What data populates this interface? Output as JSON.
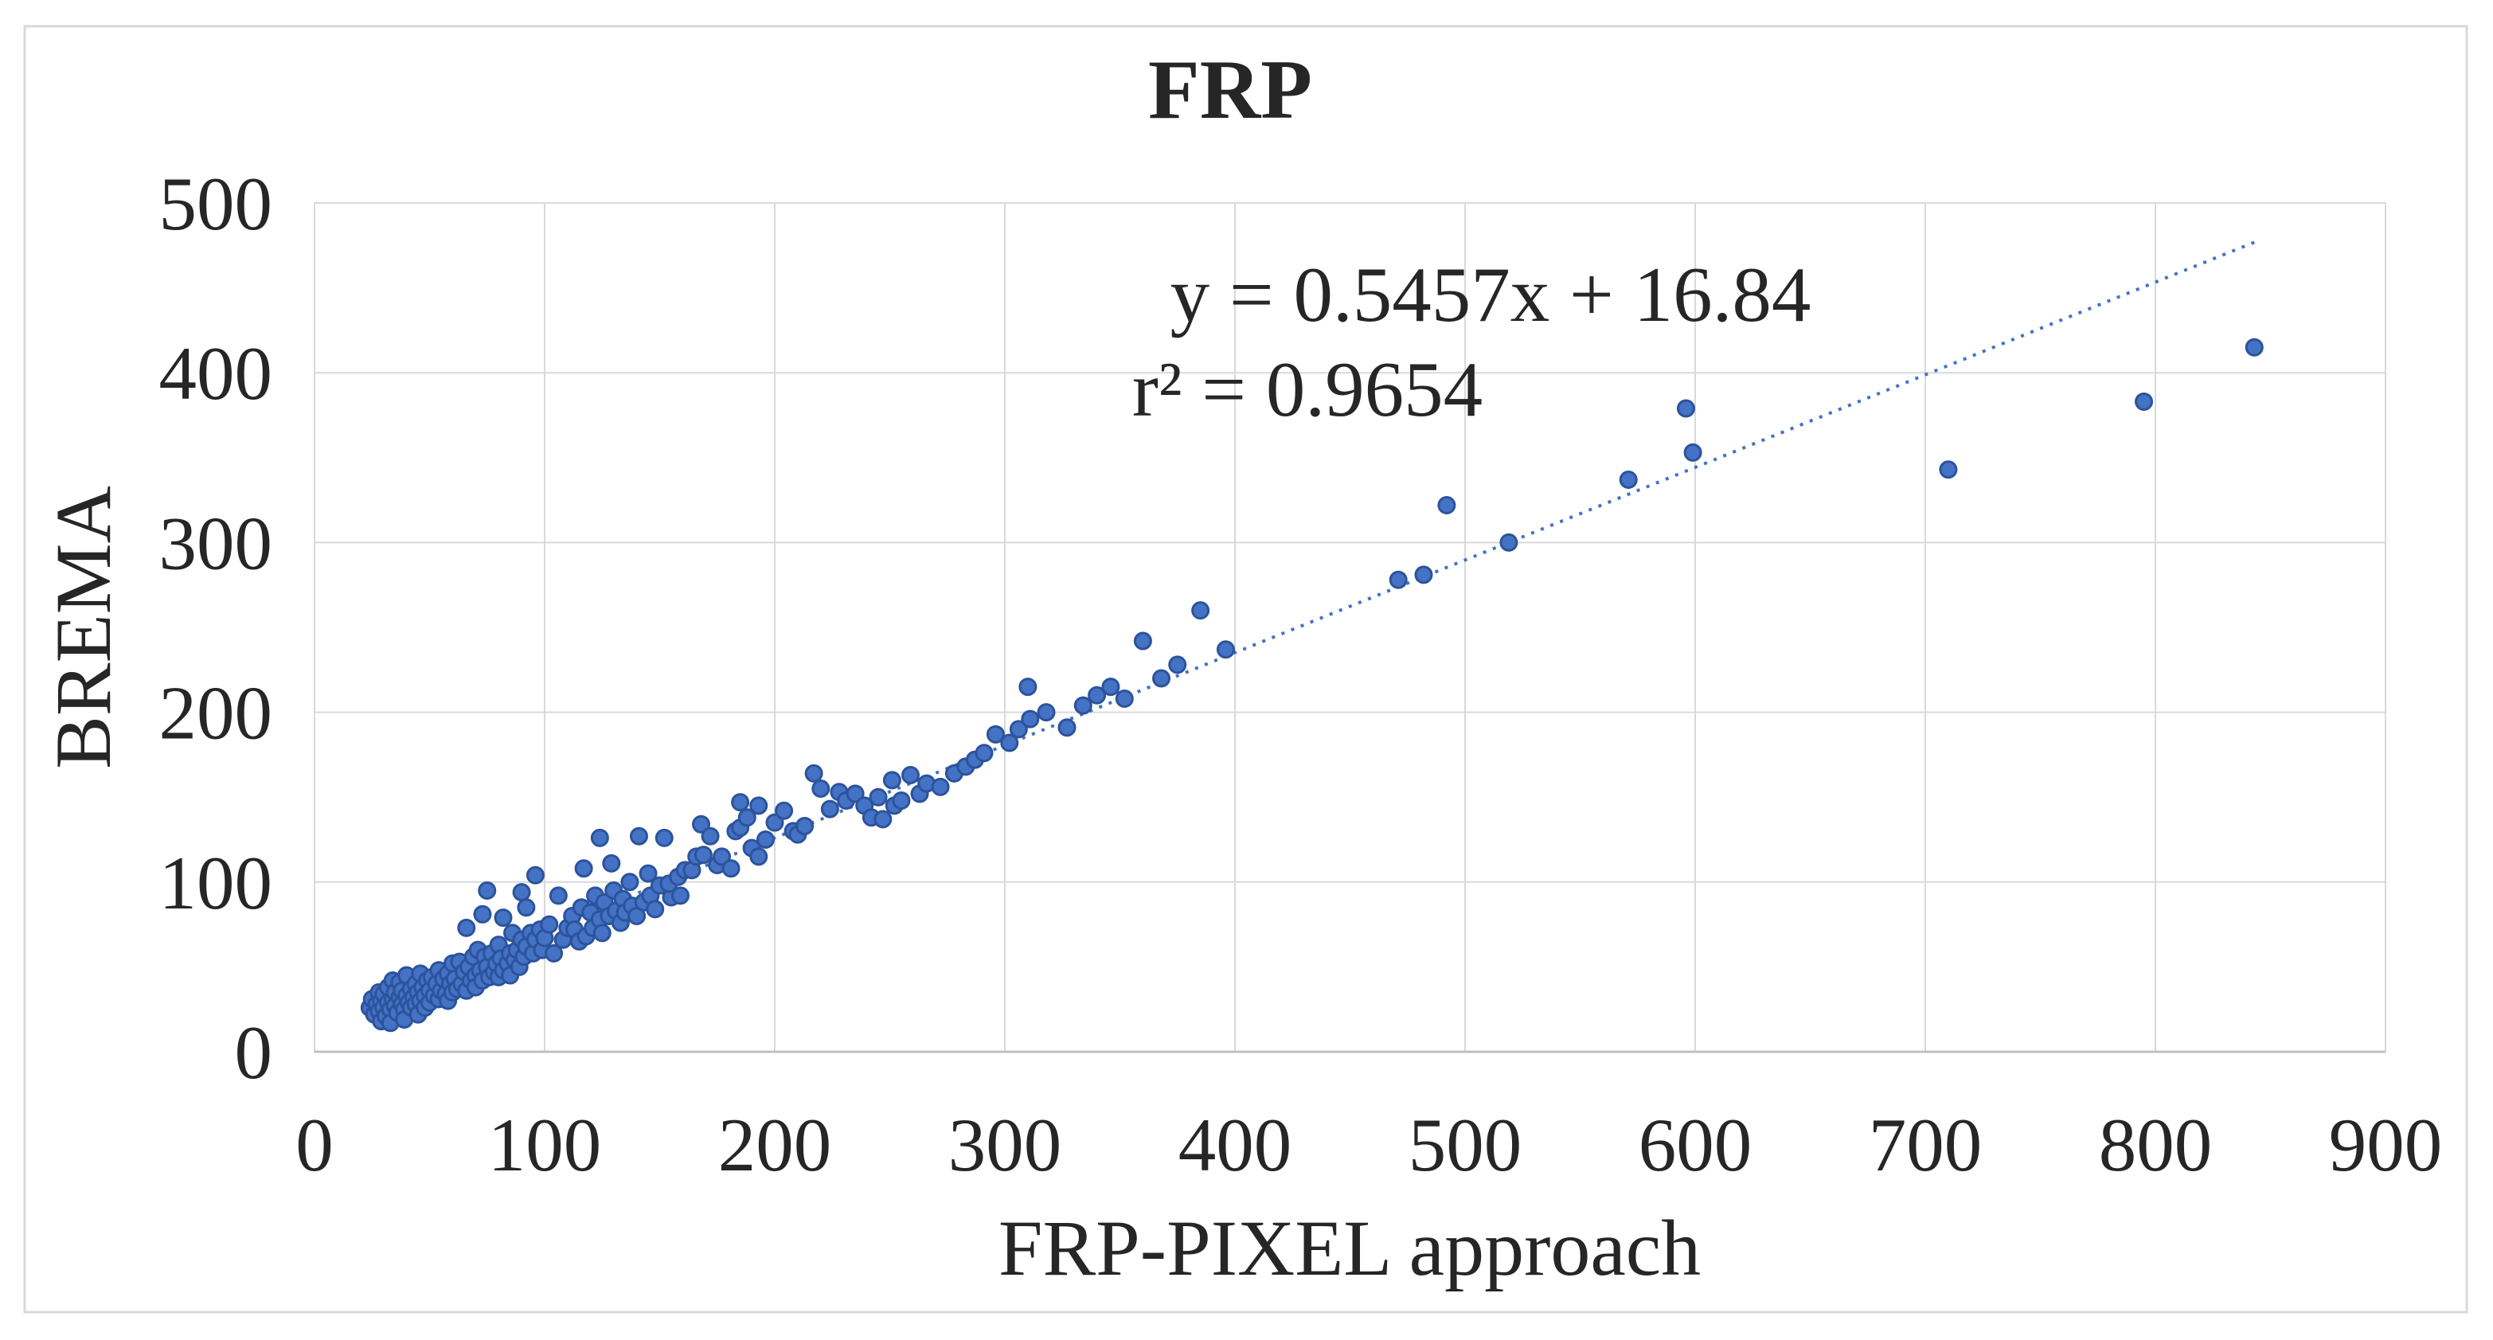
{
  "figure": {
    "background": "#FFFFFF",
    "border_color": "#D9D9D9"
  },
  "chart_data": {
    "type": "scatter",
    "title": "FRP",
    "xlabel": "FRP-PIXEL approach",
    "ylabel": "BREMA",
    "xlim": [
      0,
      900
    ],
    "ylim": [
      0,
      500
    ],
    "x_ticks": [
      0,
      100,
      200,
      300,
      400,
      500,
      600,
      700,
      800,
      900
    ],
    "y_ticks": [
      0,
      100,
      200,
      300,
      400,
      500
    ],
    "grid": true,
    "gridline_color": "#D9D9D9",
    "axis_line_color": "#BFBFBF",
    "annotations": {
      "equation": "y = 0.5457x + 16.84",
      "r_squared": "r² = 0.9654"
    },
    "trendline": {
      "slope": 0.5457,
      "intercept": 16.84,
      "x_start": 28,
      "x_end": 845,
      "style": "dotted",
      "color": "#4472C4"
    },
    "series": [
      {
        "name": "FRP scatter",
        "marker_color": "#4472C4",
        "marker_edge_color": "#2C539B",
        "points": [
          [
            24,
            26
          ],
          [
            25,
            31
          ],
          [
            26,
            22
          ],
          [
            27,
            28
          ],
          [
            28,
            35
          ],
          [
            28,
            24
          ],
          [
            29,
            30
          ],
          [
            29,
            18
          ],
          [
            30,
            26
          ],
          [
            30,
            34
          ],
          [
            31,
            21
          ],
          [
            32,
            29
          ],
          [
            32,
            38
          ],
          [
            33,
            25
          ],
          [
            33,
            17
          ],
          [
            34,
            31
          ],
          [
            34,
            42
          ],
          [
            35,
            27
          ],
          [
            35,
            35
          ],
          [
            36,
            23
          ],
          [
            37,
            32
          ],
          [
            37,
            41
          ],
          [
            38,
            28
          ],
          [
            38,
            36
          ],
          [
            39,
            25
          ],
          [
            39,
            19
          ],
          [
            40,
            33
          ],
          [
            40,
            45
          ],
          [
            41,
            29
          ],
          [
            42,
            37
          ],
          [
            42,
            26
          ],
          [
            43,
            32
          ],
          [
            44,
            40
          ],
          [
            44,
            28
          ],
          [
            45,
            35
          ],
          [
            45,
            22
          ],
          [
            46,
            30
          ],
          [
            46,
            46
          ],
          [
            47,
            38
          ],
          [
            48,
            33
          ],
          [
            48,
            26
          ],
          [
            49,
            42
          ],
          [
            50,
            36
          ],
          [
            50,
            29
          ],
          [
            51,
            44
          ],
          [
            52,
            33
          ],
          [
            53,
            40
          ],
          [
            54,
            31
          ],
          [
            54,
            48
          ],
          [
            55,
            36
          ],
          [
            56,
            43
          ],
          [
            57,
            34
          ],
          [
            58,
            46
          ],
          [
            58,
            30
          ],
          [
            59,
            40
          ],
          [
            60,
            35
          ],
          [
            60,
            52
          ],
          [
            61,
            43
          ],
          [
            62,
            37
          ],
          [
            63,
            53
          ],
          [
            64,
            40
          ],
          [
            65,
            47
          ],
          [
            66,
            73
          ],
          [
            66,
            36
          ],
          [
            67,
            50
          ],
          [
            68,
            42
          ],
          [
            69,
            56
          ],
          [
            70,
            45
          ],
          [
            70,
            38
          ],
          [
            71,
            60
          ],
          [
            72,
            48
          ],
          [
            73,
            42
          ],
          [
            73,
            81
          ],
          [
            74,
            56
          ],
          [
            75,
            50
          ],
          [
            75,
            95
          ],
          [
            76,
            44
          ],
          [
            77,
            58
          ],
          [
            78,
            47
          ],
          [
            79,
            52
          ],
          [
            80,
            63
          ],
          [
            80,
            44
          ],
          [
            81,
            55
          ],
          [
            82,
            48
          ],
          [
            82,
            79
          ],
          [
            84,
            52
          ],
          [
            85,
            58
          ],
          [
            85,
            45
          ],
          [
            86,
            70
          ],
          [
            87,
            54
          ],
          [
            88,
            60
          ],
          [
            89,
            50
          ],
          [
            90,
            66
          ],
          [
            90,
            94
          ],
          [
            91,
            56
          ],
          [
            92,
            62
          ],
          [
            92,
            85
          ],
          [
            94,
            70
          ],
          [
            95,
            58
          ],
          [
            96,
            66
          ],
          [
            96,
            104
          ],
          [
            98,
            72
          ],
          [
            99,
            60
          ],
          [
            100,
            67
          ],
          [
            102,
            75
          ],
          [
            104,
            58
          ],
          [
            106,
            92
          ],
          [
            108,
            66
          ],
          [
            110,
            73
          ],
          [
            112,
            80
          ],
          [
            113,
            72
          ],
          [
            115,
            65
          ],
          [
            116,
            85
          ],
          [
            117,
            108
          ],
          [
            118,
            68
          ],
          [
            120,
            82
          ],
          [
            121,
            73
          ],
          [
            122,
            92
          ],
          [
            124,
            126
          ],
          [
            124,
            78
          ],
          [
            125,
            70
          ],
          [
            126,
            88
          ],
          [
            128,
            80
          ],
          [
            129,
            111
          ],
          [
            130,
            95
          ],
          [
            131,
            83
          ],
          [
            133,
            76
          ],
          [
            134,
            90
          ],
          [
            135,
            82
          ],
          [
            137,
            100
          ],
          [
            138,
            86
          ],
          [
            140,
            80
          ],
          [
            141,
            127
          ],
          [
            143,
            88
          ],
          [
            145,
            105
          ],
          [
            146,
            92
          ],
          [
            148,
            84
          ],
          [
            150,
            98
          ],
          [
            152,
            126
          ],
          [
            155,
            91
          ],
          [
            154,
            99
          ],
          [
            158,
            103
          ],
          [
            159,
            92
          ],
          [
            161,
            107
          ],
          [
            164,
            107
          ],
          [
            166,
            115
          ],
          [
            168,
            134
          ],
          [
            169,
            116
          ],
          [
            172,
            127
          ],
          [
            175,
            110
          ],
          [
            177,
            115
          ],
          [
            181,
            108
          ],
          [
            183,
            130
          ],
          [
            185,
            132
          ],
          [
            185,
            147
          ],
          [
            188,
            138
          ],
          [
            190,
            120
          ],
          [
            193,
            145
          ],
          [
            193,
            115
          ],
          [
            196,
            125
          ],
          [
            200,
            135
          ],
          [
            204,
            142
          ],
          [
            208,
            130
          ],
          [
            210,
            128
          ],
          [
            213,
            133
          ],
          [
            217,
            164
          ],
          [
            220,
            155
          ],
          [
            224,
            143
          ],
          [
            228,
            153
          ],
          [
            231,
            148
          ],
          [
            235,
            152
          ],
          [
            239,
            145
          ],
          [
            242,
            138
          ],
          [
            245,
            150
          ],
          [
            247,
            137
          ],
          [
            251,
            160
          ],
          [
            252,
            145
          ],
          [
            255,
            148
          ],
          [
            259,
            163
          ],
          [
            263,
            152
          ],
          [
            266,
            158
          ],
          [
            272,
            156
          ],
          [
            278,
            164
          ],
          [
            283,
            168
          ],
          [
            287,
            172
          ],
          [
            291,
            176
          ],
          [
            296,
            187
          ],
          [
            302,
            182
          ],
          [
            306,
            190
          ],
          [
            310,
            215
          ],
          [
            311,
            196
          ],
          [
            318,
            200
          ],
          [
            327,
            191
          ],
          [
            334,
            204
          ],
          [
            340,
            210
          ],
          [
            346,
            215
          ],
          [
            352,
            208
          ],
          [
            360,
            242
          ],
          [
            368,
            220
          ],
          [
            375,
            228
          ],
          [
            385,
            260
          ],
          [
            396,
            237
          ],
          [
            471,
            278
          ],
          [
            482,
            281
          ],
          [
            492,
            322
          ],
          [
            519,
            300
          ],
          [
            571,
            337
          ],
          [
            596,
            379
          ],
          [
            599,
            353
          ],
          [
            710,
            343
          ],
          [
            795,
            383
          ],
          [
            843,
            415
          ]
        ]
      }
    ]
  }
}
